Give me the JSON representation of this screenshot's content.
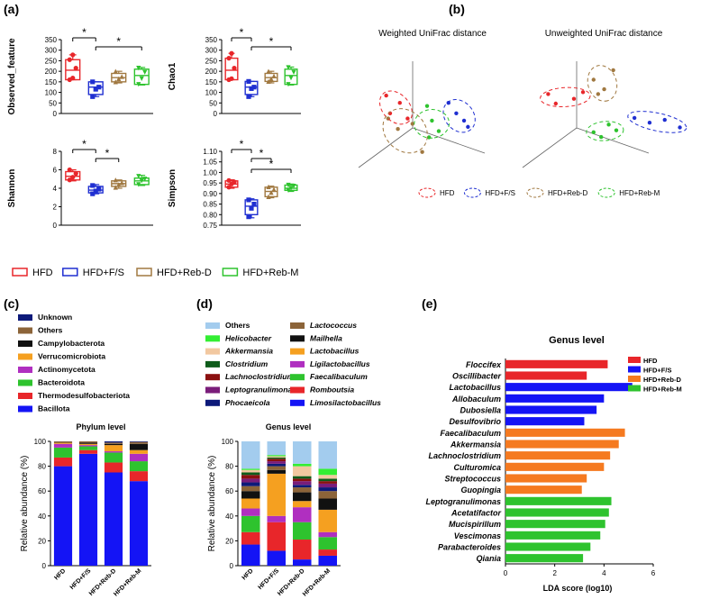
{
  "colors": {
    "HFD": "#e8262a",
    "HFD+F/S": "#1f2fd1",
    "HFD+Reb-D": "#a07840",
    "HFD+Reb-M": "#2ec32e"
  },
  "panel_labels": {
    "a": "(a)",
    "b": "(b)",
    "c": "(c)",
    "d": "(d)",
    "e": "(e)"
  },
  "significance_marker": "*",
  "chart_data": [
    {
      "id": "a1",
      "type": "box",
      "ylabel": "Observed_feature",
      "ylim": [
        0,
        350
      ],
      "yticks": [
        0,
        50,
        100,
        150,
        200,
        250,
        300,
        350
      ],
      "groups": [
        {
          "name": "HFD",
          "marker": "circle",
          "min": 160,
          "q1": 160,
          "median": 205,
          "q3": 255,
          "max": 278,
          "points": [
            160,
            168,
            215,
            255,
            278
          ]
        },
        {
          "name": "HFD+F/S",
          "marker": "square",
          "min": 80,
          "q1": 90,
          "median": 125,
          "q3": 150,
          "max": 150,
          "points": [
            80,
            115,
            125,
            150
          ]
        },
        {
          "name": "HFD+Reb-D",
          "marker": "triangle-up",
          "min": 145,
          "q1": 150,
          "median": 170,
          "q3": 190,
          "max": 200,
          "points": [
            150,
            165,
            175,
            200
          ]
        },
        {
          "name": "HFD+Reb-M",
          "marker": "triangle-down",
          "min": 135,
          "q1": 138,
          "median": 180,
          "q3": 210,
          "max": 218,
          "points": [
            138,
            165,
            195,
            215
          ]
        }
      ],
      "significance": [
        {
          "from": 0,
          "to": 1,
          "level": 1
        },
        {
          "from": 1,
          "to": 3,
          "level": 2
        }
      ]
    },
    {
      "id": "a2",
      "type": "box",
      "ylabel": "Chao1",
      "ylim": [
        0,
        350
      ],
      "yticks": [
        0,
        50,
        100,
        150,
        200,
        250,
        300,
        350
      ],
      "groups": [
        {
          "name": "HFD",
          "marker": "circle",
          "min": 160,
          "q1": 160,
          "median": 205,
          "q3": 262,
          "max": 285,
          "points": [
            160,
            165,
            215,
            262,
            285
          ]
        },
        {
          "name": "HFD+F/S",
          "marker": "square",
          "min": 80,
          "q1": 90,
          "median": 125,
          "q3": 152,
          "max": 152,
          "points": [
            80,
            118,
            125,
            152
          ]
        },
        {
          "name": "HFD+Reb-D",
          "marker": "triangle-up",
          "min": 145,
          "q1": 152,
          "median": 170,
          "q3": 190,
          "max": 200,
          "points": [
            152,
            165,
            178,
            200
          ]
        },
        {
          "name": "HFD+Reb-M",
          "marker": "triangle-down",
          "min": 135,
          "q1": 138,
          "median": 180,
          "q3": 210,
          "max": 220,
          "points": [
            138,
            168,
            195,
            218
          ]
        }
      ],
      "significance": [
        {
          "from": 0,
          "to": 1,
          "level": 1
        },
        {
          "from": 1,
          "to": 3,
          "level": 2
        }
      ]
    },
    {
      "id": "a3",
      "type": "box",
      "ylabel": "Shannon",
      "ylim": [
        0,
        8
      ],
      "yticks": [
        0,
        2,
        4,
        6,
        8
      ],
      "groups": [
        {
          "name": "HFD",
          "marker": "circle",
          "min": 4.8,
          "q1": 4.9,
          "median": 5.3,
          "q3": 5.8,
          "max": 6.0,
          "points": [
            4.9,
            5.2,
            5.6,
            6.0
          ]
        },
        {
          "name": "HFD+F/S",
          "marker": "square",
          "min": 3.4,
          "q1": 3.5,
          "median": 3.8,
          "q3": 4.2,
          "max": 4.4,
          "points": [
            3.4,
            3.7,
            3.9,
            4.3
          ]
        },
        {
          "name": "HFD+Reb-D",
          "marker": "triangle-up",
          "min": 4.0,
          "q1": 4.2,
          "median": 4.5,
          "q3": 4.8,
          "max": 4.9,
          "points": [
            4.1,
            4.4,
            4.6,
            4.9
          ]
        },
        {
          "name": "HFD+Reb-M",
          "marker": "triangle-down",
          "min": 4.3,
          "q1": 4.4,
          "median": 4.8,
          "q3": 5.1,
          "max": 5.4,
          "points": [
            4.4,
            4.8,
            5.0,
            5.3
          ]
        }
      ],
      "significance": [
        {
          "from": 0,
          "to": 1,
          "level": 1
        },
        {
          "from": 1,
          "to": 2,
          "level": 2
        }
      ]
    },
    {
      "id": "a4",
      "type": "box",
      "ylabel": "Simpson",
      "ylim": [
        0.75,
        1.1
      ],
      "yticks": [
        0.75,
        0.8,
        0.85,
        0.9,
        0.95,
        1.0,
        1.05,
        1.1
      ],
      "groups": [
        {
          "name": "HFD",
          "marker": "circle",
          "min": 0.925,
          "q1": 0.93,
          "median": 0.945,
          "q3": 0.96,
          "max": 0.965,
          "points": [
            0.93,
            0.945,
            0.955,
            0.962
          ]
        },
        {
          "name": "HFD+F/S",
          "marker": "square",
          "min": 0.785,
          "q1": 0.8,
          "median": 0.84,
          "q3": 0.87,
          "max": 0.875,
          "points": [
            0.79,
            0.83,
            0.85,
            0.87
          ]
        },
        {
          "name": "HFD+Reb-D",
          "marker": "triangle-up",
          "min": 0.88,
          "q1": 0.885,
          "median": 0.91,
          "q3": 0.93,
          "max": 0.935,
          "points": [
            0.885,
            0.905,
            0.92,
            0.932
          ]
        },
        {
          "name": "HFD+Reb-M",
          "marker": "triangle-down",
          "min": 0.91,
          "q1": 0.915,
          "median": 0.925,
          "q3": 0.94,
          "max": 0.945,
          "points": [
            0.915,
            0.925,
            0.935,
            0.94
          ]
        }
      ],
      "significance": [
        {
          "from": 0,
          "to": 1,
          "level": 1
        },
        {
          "from": 1,
          "to": 2,
          "level": 2
        },
        {
          "from": 1,
          "to": 3,
          "level": 3
        }
      ]
    },
    {
      "id": "b",
      "type": "scatter",
      "panels": [
        {
          "title": "Weighted UniFrac distance",
          "points": [
            {
              "group": "HFD",
              "v": [
                0.08,
                0.62
              ]
            },
            {
              "group": "HFD",
              "v": [
                0.12,
                0.45
              ]
            },
            {
              "group": "HFD",
              "v": [
                0.22,
                0.55
              ]
            },
            {
              "group": "HFD",
              "v": [
                0.3,
                0.4
              ]
            },
            {
              "group": "HFD+F/S",
              "v": [
                0.72,
                0.55
              ]
            },
            {
              "group": "HFD+F/S",
              "v": [
                0.8,
                0.45
              ]
            },
            {
              "group": "HFD+F/S",
              "v": [
                0.92,
                0.32
              ]
            },
            {
              "group": "HFD+F/S",
              "v": [
                0.88,
                0.38
              ]
            },
            {
              "group": "HFD+Reb-D",
              "v": [
                0.1,
                0.4
              ]
            },
            {
              "group": "HFD+Reb-D",
              "v": [
                0.2,
                0.3
              ]
            },
            {
              "group": "HFD+Reb-D",
              "v": [
                0.35,
                0.35
              ]
            },
            {
              "group": "HFD+Reb-D",
              "v": [
                0.45,
                0.08
              ]
            },
            {
              "group": "HFD+Reb-M",
              "v": [
                0.5,
                0.52
              ]
            },
            {
              "group": "HFD+Reb-M",
              "v": [
                0.55,
                0.38
              ]
            },
            {
              "group": "HFD+Reb-M",
              "v": [
                0.62,
                0.28
              ]
            },
            {
              "group": "HFD+Reb-M",
              "v": [
                0.52,
                0.22
              ]
            }
          ]
        },
        {
          "title": "Unweighted UniFrac distance",
          "points": [
            {
              "group": "HFD",
              "v": [
                0.05,
                0.6
              ]
            },
            {
              "group": "HFD",
              "v": [
                0.1,
                0.5
              ]
            },
            {
              "group": "HFD",
              "v": [
                0.22,
                0.55
              ]
            },
            {
              "group": "HFD",
              "v": [
                0.28,
                0.62
              ]
            },
            {
              "group": "HFD+F/S",
              "v": [
                0.62,
                0.35
              ]
            },
            {
              "group": "HFD+F/S",
              "v": [
                0.72,
                0.3
              ]
            },
            {
              "group": "HFD+F/S",
              "v": [
                0.82,
                0.33
              ]
            },
            {
              "group": "HFD+F/S",
              "v": [
                0.92,
                0.25
              ]
            },
            {
              "group": "HFD+Reb-D",
              "v": [
                0.35,
                0.75
              ]
            },
            {
              "group": "HFD+Reb-D",
              "v": [
                0.42,
                0.65
              ]
            },
            {
              "group": "HFD+Reb-D",
              "v": [
                0.48,
                0.85
              ]
            },
            {
              "group": "HFD+Reb-D",
              "v": [
                0.38,
                0.6
              ]
            },
            {
              "group": "HFD+Reb-M",
              "v": [
                0.35,
                0.2
              ]
            },
            {
              "group": "HFD+Reb-M",
              "v": [
                0.4,
                0.15
              ]
            },
            {
              "group": "HFD+Reb-M",
              "v": [
                0.45,
                0.28
              ]
            },
            {
              "group": "HFD+Reb-M",
              "v": [
                0.5,
                0.22
              ]
            }
          ]
        }
      ]
    },
    {
      "id": "c",
      "type": "stacked-bar",
      "title": "Phylum level",
      "ylabel": "Relative abundance (%)",
      "ylim": [
        0,
        100
      ],
      "yticks": [
        0,
        20,
        40,
        60,
        80,
        100
      ],
      "categories": [
        "HFD",
        "HFD+F/S",
        "HFD+Reb-D",
        "HFD+Reb-M"
      ],
      "series": [
        {
          "name": "Bacillota",
          "color": "#1414f5",
          "values": [
            80,
            90,
            75,
            68
          ]
        },
        {
          "name": "Thermodesulfobacteriota",
          "color": "#e8262a",
          "values": [
            7,
            3,
            8,
            8
          ]
        },
        {
          "name": "Bacteroidota",
          "color": "#2ec32e",
          "values": [
            8,
            3,
            8,
            8
          ]
        },
        {
          "name": "Actinomycetota",
          "color": "#b02fc0",
          "values": [
            3,
            1,
            1,
            6
          ]
        },
        {
          "name": "Verrucomicrobiota",
          "color": "#f5a020",
          "values": [
            1,
            1,
            5,
            3
          ]
        },
        {
          "name": "Campylobacterota",
          "color": "#111111",
          "values": [
            0.5,
            1,
            1,
            5
          ]
        },
        {
          "name": "Others",
          "color": "#8c6439",
          "values": [
            0.5,
            1,
            1,
            1.5
          ]
        },
        {
          "name": "Unknown",
          "color": "#0d1a7a",
          "values": [
            0,
            0,
            1,
            0.5
          ]
        }
      ]
    },
    {
      "id": "d",
      "type": "stacked-bar",
      "title": "Genus level",
      "ylabel": "Relative abundance (%)",
      "ylim": [
        0,
        100
      ],
      "yticks": [
        0,
        20,
        40,
        60,
        80,
        100
      ],
      "categories": [
        "HFD",
        "HFD+F/S",
        "HFD+Reb-D",
        "HFD+Reb-M"
      ],
      "series": [
        {
          "name": "Limosilactobacillus",
          "color": "#1414f5",
          "values": [
            17,
            12,
            5,
            8
          ]
        },
        {
          "name": "Romboutsia",
          "color": "#e8262a",
          "values": [
            10,
            23,
            16,
            5
          ]
        },
        {
          "name": "Faecalibaculum",
          "color": "#2ec32e",
          "values": [
            13,
            0,
            14,
            10
          ]
        },
        {
          "name": "Ligilactobacillus",
          "color": "#b02fc0",
          "values": [
            6,
            5,
            12,
            4
          ]
        },
        {
          "name": "Lactobacillus",
          "color": "#f5a020",
          "values": [
            8,
            34,
            5,
            18
          ]
        },
        {
          "name": "Mailhella",
          "color": "#111111",
          "values": [
            6,
            3,
            7,
            9
          ]
        },
        {
          "name": "Lactococcus",
          "color": "#8c6439",
          "values": [
            4,
            3,
            4,
            6
          ]
        },
        {
          "name": "Phocaeicola",
          "color": "#0d1a7a",
          "values": [
            3,
            2,
            2,
            3
          ]
        },
        {
          "name": "Leptogranulimonas",
          "color": "#7a1d7a",
          "values": [
            3,
            2,
            3,
            3
          ]
        },
        {
          "name": "Lachnoclostridium",
          "color": "#8b1010",
          "values": [
            3,
            2,
            2,
            2
          ]
        },
        {
          "name": "Clostridium",
          "color": "#0e5c1a",
          "values": [
            2,
            1,
            2,
            2
          ]
        },
        {
          "name": "Akkermansia",
          "color": "#f2c8a0",
          "values": [
            2,
            1,
            8,
            3
          ]
        },
        {
          "name": "Helicobacter",
          "color": "#33ee33",
          "values": [
            1,
            1,
            2,
            5
          ]
        },
        {
          "name": "Others",
          "color": "#a3ccee",
          "values": [
            22,
            11,
            18,
            22
          ]
        }
      ]
    },
    {
      "id": "e",
      "type": "bar",
      "orientation": "horizontal",
      "title": "Genus level",
      "xlabel": "LDA score (log10)",
      "xlim": [
        0,
        6
      ],
      "xticks": [
        0,
        2,
        4,
        6
      ],
      "categories": [
        "Floccifex",
        "Oscillibacter",
        "Lactobacillus",
        "Allobaculum",
        "Dubosiella",
        "Desulfovibrio",
        "Faecalibaculum",
        "Akkermansia",
        "Lachnoclostridium",
        "Culturomica",
        "Streptococcus",
        "Guopingia",
        "Leptogranulimonas",
        "Acetatifactor",
        "Mucispirillum",
        "Vescimonas",
        "Parabacteroides",
        "Qiania"
      ],
      "values": [
        4.15,
        3.3,
        5.15,
        4.0,
        3.7,
        3.2,
        4.85,
        4.6,
        4.25,
        4.0,
        3.3,
        3.1,
        4.3,
        4.2,
        4.05,
        3.85,
        3.45,
        3.15
      ],
      "groups": [
        "HFD",
        "HFD",
        "HFD+F/S",
        "HFD+F/S",
        "HFD+F/S",
        "HFD+F/S",
        "HFD+Reb-D",
        "HFD+Reb-D",
        "HFD+Reb-D",
        "HFD+Reb-D",
        "HFD+Reb-D",
        "HFD+Reb-D",
        "HFD+Reb-M",
        "HFD+Reb-M",
        "HFD+Reb-M",
        "HFD+Reb-M",
        "HFD+Reb-M",
        "HFD+Reb-M"
      ],
      "legend": [
        {
          "name": "HFD",
          "color": "#e8262a"
        },
        {
          "name": "HFD+F/S",
          "color": "#1414f5"
        },
        {
          "name": "HFD+Reb-D",
          "color": "#f57a20"
        },
        {
          "name": "HFD+Reb-M",
          "color": "#2ec32e"
        }
      ],
      "legend_position": "top-right"
    }
  ]
}
